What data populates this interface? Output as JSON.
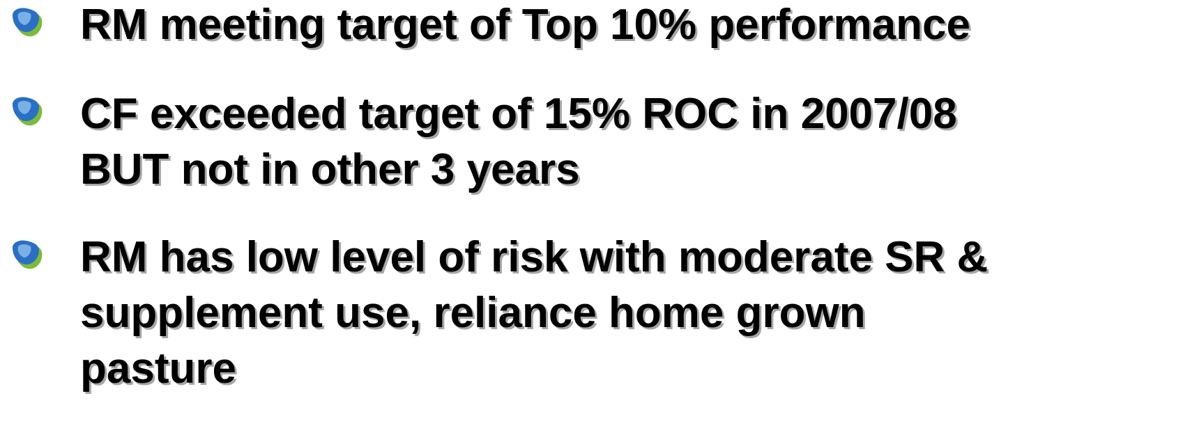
{
  "bullets": [
    {
      "lines": [
        "RM meeting target of Top 10% performance"
      ]
    },
    {
      "lines": [
        "CF exceeded target of 15% ROC in 2007/08",
        "BUT not in other 3 years"
      ]
    },
    {
      "lines": [
        "RM has low level of risk with moderate SR &",
        "supplement use, reliance home grown",
        "pasture"
      ]
    }
  ]
}
